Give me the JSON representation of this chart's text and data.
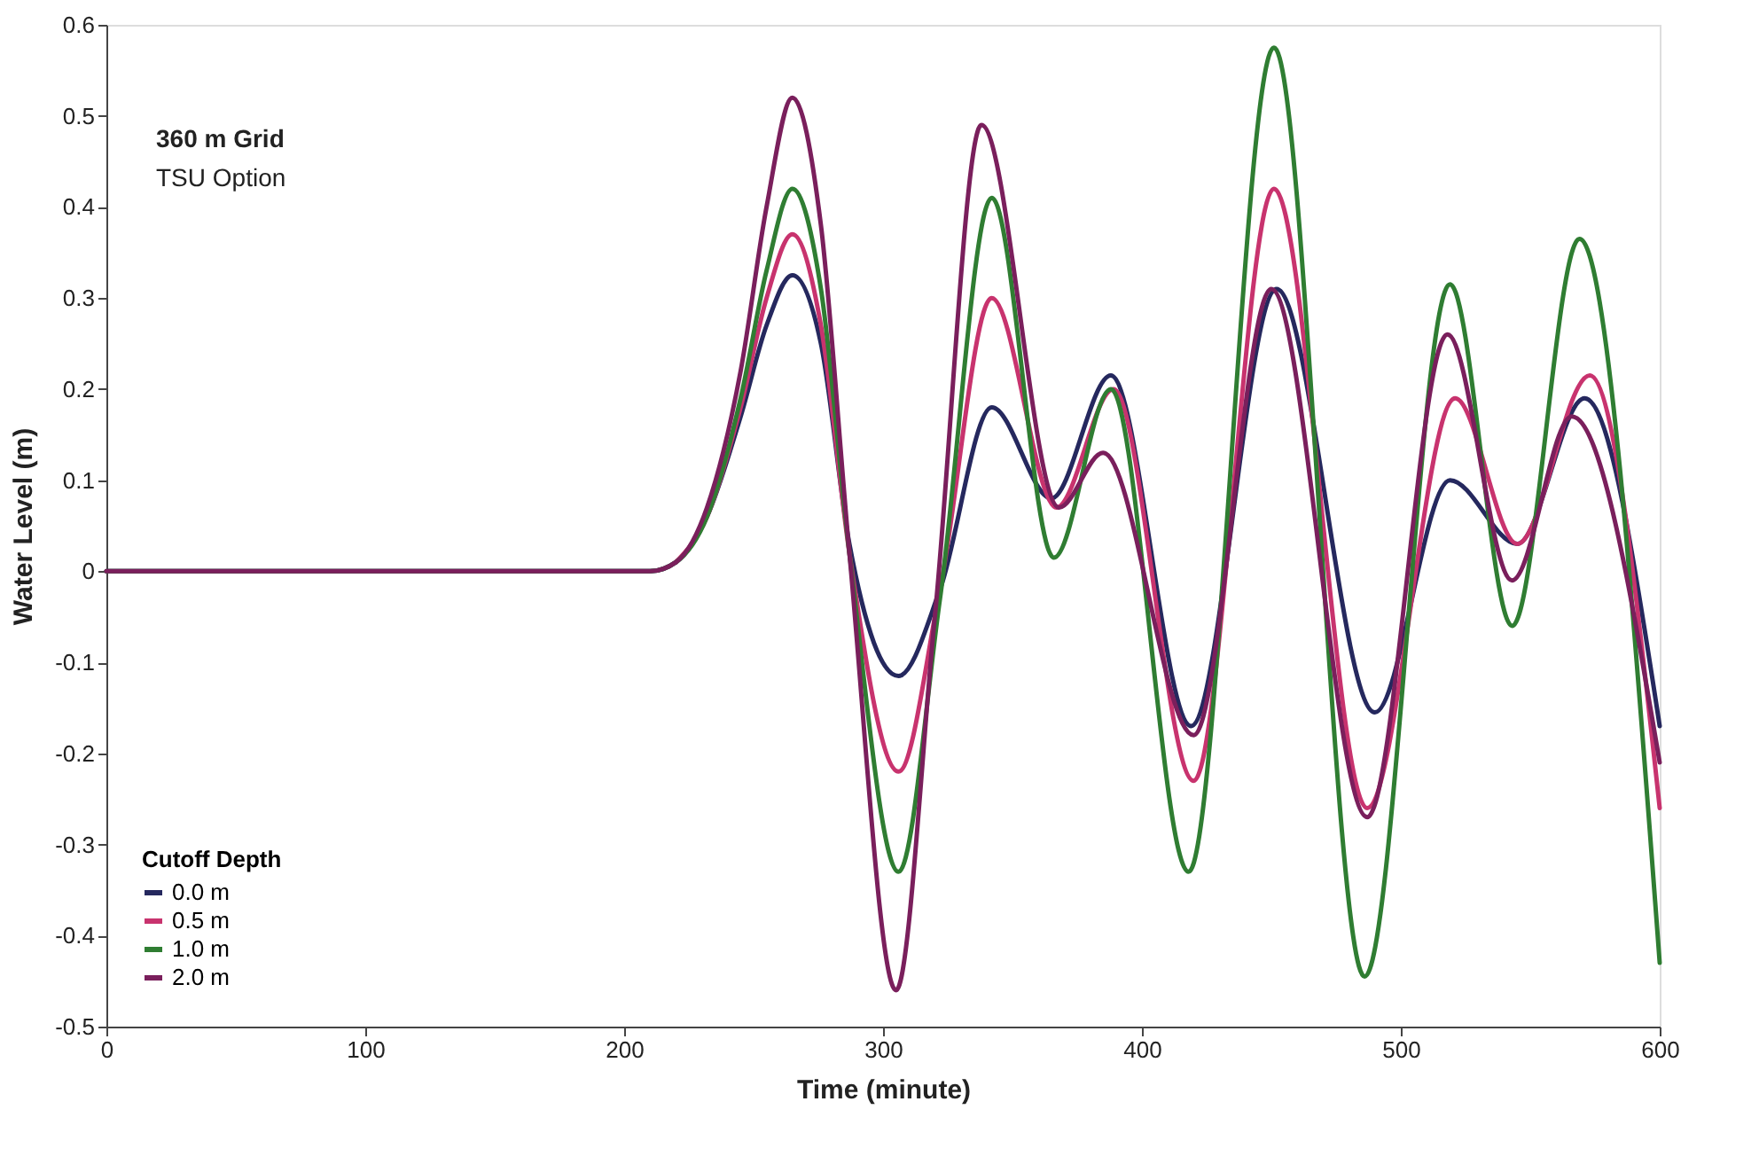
{
  "chart_data": {
    "type": "line",
    "xlabel": "Time (minute)",
    "ylabel": "Water Level (m)",
    "legend_title": "Cutoff Depth",
    "annotations": [
      "360 m Grid",
      "TSU Option"
    ],
    "xlim": [
      0,
      600
    ],
    "xticks": [
      0,
      100,
      200,
      300,
      400,
      500,
      600
    ],
    "ylim": [
      -0.5,
      0.6
    ],
    "yticks": [
      -0.5,
      -0.4,
      -0.3,
      -0.2,
      -0.1,
      0,
      0.1,
      0.2,
      0.3,
      0.4,
      0.5,
      0.6
    ],
    "grid": false,
    "legend": "bottom left",
    "marker": "none",
    "line_style": "solid",
    "series": [
      {
        "name": "0.0 m",
        "color": "#25285e",
        "x": [
          0,
          210,
          220,
          232,
          245,
          255,
          265,
          276,
          287,
          306,
          322,
          342,
          365,
          388,
          419,
          452,
          490,
          519,
          545,
          571,
          600
        ],
        "values": [
          0,
          0,
          0.01,
          0.06,
          0.17,
          0.27,
          0.325,
          0.25,
          0.03,
          -0.115,
          -0.02,
          0.18,
          0.08,
          0.215,
          -0.17,
          0.31,
          -0.155,
          0.1,
          0.03,
          0.19,
          -0.17
        ]
      },
      {
        "name": "0.5 m",
        "color": "#c8336e",
        "x": [
          220,
          232,
          245,
          255,
          265,
          276,
          287,
          306,
          322,
          342,
          367,
          389,
          420,
          451,
          487,
          521,
          545,
          573,
          600
        ],
        "values": [
          0.01,
          0.06,
          0.18,
          0.3,
          0.37,
          0.27,
          0.02,
          -0.22,
          -0.02,
          0.3,
          0.07,
          0.2,
          -0.23,
          0.42,
          -0.26,
          0.19,
          0.03,
          0.215,
          -0.26
        ]
      },
      {
        "name": "1.0 m",
        "color": "#2f7d32",
        "x": [
          0,
          210,
          220,
          232,
          245,
          255,
          265,
          276,
          287,
          306,
          322,
          342,
          366,
          388,
          418,
          451,
          486,
          519,
          543,
          569,
          600
        ],
        "values": [
          0,
          0,
          0.01,
          0.06,
          0.19,
          0.33,
          0.42,
          0.31,
          0.02,
          -0.33,
          -0.03,
          0.41,
          0.015,
          0.2,
          -0.33,
          0.575,
          -0.445,
          0.315,
          -0.06,
          0.365,
          -0.43
        ]
      },
      {
        "name": "2.0 m",
        "color": "#7a1f5c",
        "x": [
          0,
          210,
          220,
          232,
          245,
          255,
          265,
          276,
          287,
          305,
          320,
          338,
          368,
          385,
          420,
          450,
          487,
          518,
          543,
          566,
          600
        ],
        "values": [
          0,
          0,
          0.01,
          0.07,
          0.22,
          0.4,
          0.52,
          0.38,
          0.02,
          -0.46,
          -0.05,
          0.49,
          0.07,
          0.13,
          -0.18,
          0.31,
          -0.27,
          0.26,
          -0.01,
          0.17,
          -0.21
        ]
      }
    ]
  }
}
